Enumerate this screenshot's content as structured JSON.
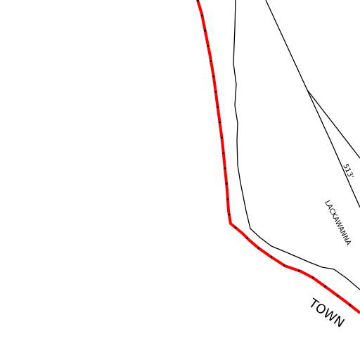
{
  "labels": {
    "elevation": "513'",
    "road": "LACKAWANNA",
    "area": "TOWN"
  }
}
